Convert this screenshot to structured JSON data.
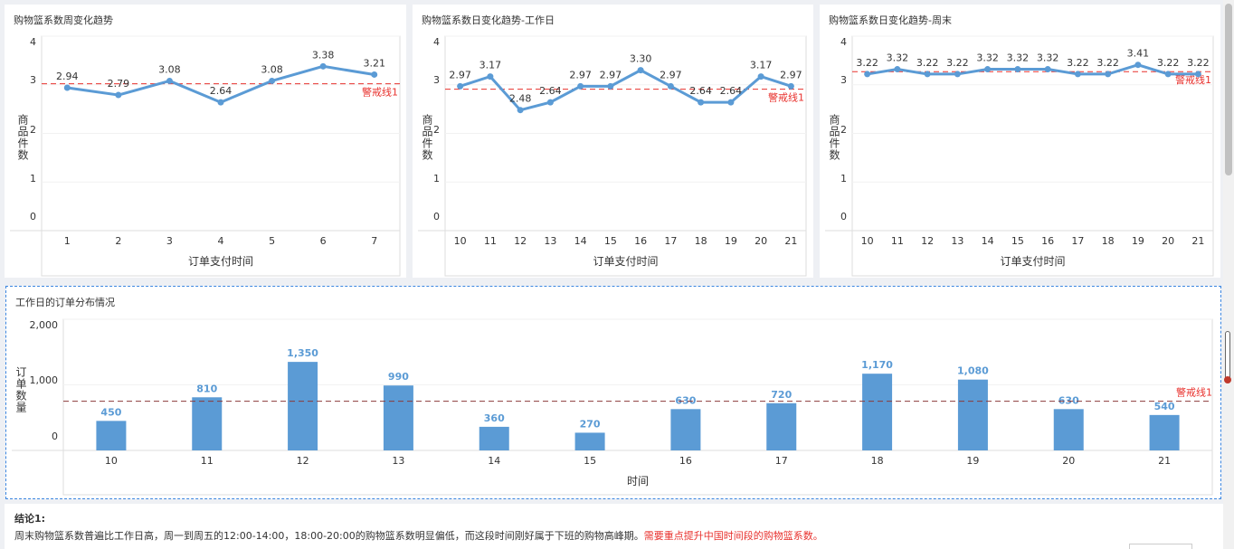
{
  "charts": [
    {
      "title": "购物篮系数周变化趋势",
      "type": "line",
      "categories": [
        "1",
        "2",
        "3",
        "4",
        "5",
        "6",
        "7"
      ],
      "values": [
        2.94,
        2.79,
        3.08,
        2.64,
        3.08,
        3.38,
        3.21
      ],
      "labels": [
        "2.94",
        "2.79",
        "3.08",
        "2.64",
        "3.08",
        "3.38",
        "3.21"
      ],
      "ylabel": "商品件数",
      "xlabel": "订单支付时间",
      "ylim": [
        0,
        4
      ],
      "yticks": [
        "0",
        "1",
        "2",
        "3",
        "4"
      ],
      "warning": {
        "label": "警戒线1",
        "value": 3.02
      }
    },
    {
      "title": "购物篮系数日变化趋势-工作日",
      "type": "line",
      "categories": [
        "10",
        "11",
        "12",
        "13",
        "14",
        "15",
        "16",
        "17",
        "18",
        "19",
        "20",
        "21"
      ],
      "values": [
        2.97,
        3.17,
        2.48,
        2.64,
        2.97,
        2.97,
        3.3,
        2.97,
        2.64,
        2.64,
        3.17,
        2.97
      ],
      "labels": [
        "2.97",
        "3.17",
        "2.48",
        "2.64",
        "2.97",
        "2.97",
        "3.30",
        "2.97",
        "2.64",
        "2.64",
        "3.17",
        "2.97"
      ],
      "ylabel": "商品件数",
      "xlabel": "订单支付时间",
      "ylim": [
        0,
        4
      ],
      "yticks": [
        "0",
        "1",
        "2",
        "3",
        "4"
      ],
      "warning": {
        "label": "警戒线1",
        "value": 2.91
      }
    },
    {
      "title": "购物篮系数日变化趋势-周末",
      "type": "line",
      "categories": [
        "10",
        "11",
        "12",
        "13",
        "14",
        "15",
        "16",
        "17",
        "18",
        "19",
        "20",
        "21"
      ],
      "values": [
        3.22,
        3.32,
        3.22,
        3.22,
        3.32,
        3.32,
        3.32,
        3.22,
        3.22,
        3.41,
        3.22,
        3.22
      ],
      "labels": [
        "3.22",
        "3.32",
        "3.22",
        "3.22",
        "3.32",
        "3.32",
        "3.32",
        "3.22",
        "3.22",
        "3.41",
        "3.22",
        "3.22"
      ],
      "ylabel": "商品件数",
      "xlabel": "订单支付时间",
      "ylim": [
        0,
        4
      ],
      "yticks": [
        "0",
        "1",
        "2",
        "3",
        "4"
      ],
      "warning": {
        "label": "警戒线1",
        "value": 3.27
      }
    },
    {
      "title": "工作日的订单分布情况",
      "type": "bar",
      "categories": [
        "10",
        "11",
        "12",
        "13",
        "14",
        "15",
        "16",
        "17",
        "18",
        "19",
        "20",
        "21"
      ],
      "values": [
        450,
        810,
        1350,
        990,
        360,
        270,
        630,
        720,
        1170,
        1080,
        630,
        540
      ],
      "labels": [
        "450",
        "810",
        "1,350",
        "990",
        "360",
        "270",
        "630",
        "720",
        "1,170",
        "1,080",
        "630",
        "540"
      ],
      "ylabel": "订单数量",
      "xlabel": "时间",
      "ylim": [
        0,
        2000
      ],
      "yticks": [
        "0",
        "1,000",
        "2,000"
      ],
      "warning": {
        "label": "警戒线1",
        "value": 750
      }
    }
  ],
  "chart_data": [
    {
      "type": "line",
      "title": "购物篮系数周变化趋势",
      "x": [
        "1",
        "2",
        "3",
        "4",
        "5",
        "6",
        "7"
      ],
      "values": [
        2.94,
        2.79,
        3.08,
        2.64,
        3.08,
        3.38,
        3.21
      ],
      "xlabel": "订单支付时间",
      "ylabel": "商品件数",
      "ylim": [
        0,
        4
      ]
    },
    {
      "type": "line",
      "title": "购物篮系数日变化趋势-工作日",
      "x": [
        "10",
        "11",
        "12",
        "13",
        "14",
        "15",
        "16",
        "17",
        "18",
        "19",
        "20",
        "21"
      ],
      "values": [
        2.97,
        3.17,
        2.48,
        2.64,
        2.97,
        2.97,
        3.3,
        2.97,
        2.64,
        2.64,
        3.17,
        2.97
      ],
      "xlabel": "订单支付时间",
      "ylabel": "商品件数",
      "ylim": [
        0,
        4
      ]
    },
    {
      "type": "line",
      "title": "购物篮系数日变化趋势-周末",
      "x": [
        "10",
        "11",
        "12",
        "13",
        "14",
        "15",
        "16",
        "17",
        "18",
        "19",
        "20",
        "21"
      ],
      "values": [
        3.22,
        3.32,
        3.22,
        3.22,
        3.32,
        3.32,
        3.32,
        3.22,
        3.22,
        3.41,
        3.22,
        3.22
      ],
      "xlabel": "订单支付时间",
      "ylabel": "商品件数",
      "ylim": [
        0,
        4
      ]
    },
    {
      "type": "bar",
      "title": "工作日的订单分布情况",
      "categories": [
        "10",
        "11",
        "12",
        "13",
        "14",
        "15",
        "16",
        "17",
        "18",
        "19",
        "20",
        "21"
      ],
      "values": [
        450,
        810,
        1350,
        990,
        360,
        270,
        630,
        720,
        1170,
        1080,
        630,
        540
      ],
      "xlabel": "时间",
      "ylabel": "订单数量",
      "ylim": [
        0,
        2000
      ]
    }
  ],
  "conclusion": {
    "heading": "结论1:",
    "text": "周末购物篮系数普遍比工作日高，周一到周五的12:00-14:00，18:00-20:00的购物篮系数明显偏低，而这段时间刚好属于下班的购物高峰期。",
    "highlight": "需要重点提升中国时间段的购物篮系数。"
  },
  "colors": {
    "line": "#5b9bd5",
    "bar": "#5b9bd5",
    "warning": "#e8312d",
    "barWarning": "#8b3a3a"
  }
}
